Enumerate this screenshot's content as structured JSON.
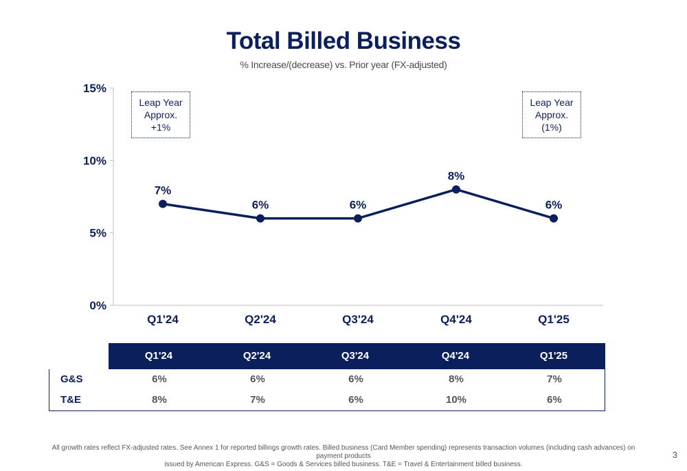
{
  "title": "Total Billed Business",
  "subtitle": "% Increase/(decrease) vs. Prior year (FX-adjusted)",
  "notes": [
    {
      "lines": [
        "Leap Year",
        "Approx.",
        "+1%"
      ]
    },
    {
      "lines": [
        "Leap Year",
        "Approx.",
        "(1%)"
      ]
    }
  ],
  "chart_data": {
    "type": "line",
    "title": "Total Billed Business",
    "subtitle": "% Increase/(decrease) vs. Prior year (FX-adjusted)",
    "categories": [
      "Q1'24",
      "Q2'24",
      "Q3'24",
      "Q4'24",
      "Q1'25"
    ],
    "series": [
      {
        "values": [
          7,
          6,
          6,
          8,
          6
        ]
      }
    ],
    "data_labels": [
      "7%",
      "6%",
      "6%",
      "8%",
      "6%"
    ],
    "ylim": [
      0,
      15
    ],
    "yticks": [
      0,
      5,
      10,
      15
    ],
    "ytick_labels": [
      "0%",
      "5%",
      "10%",
      "15%"
    ],
    "color": "#0b1f5c",
    "grid": false
  },
  "table": {
    "headers": [
      "Q1'24",
      "Q2'24",
      "Q3'24",
      "Q4'24",
      "Q1'25"
    ],
    "rows": [
      {
        "label": "G&S",
        "values": [
          "6%",
          "6%",
          "6%",
          "8%",
          "7%"
        ]
      },
      {
        "label": "T&E",
        "values": [
          "8%",
          "7%",
          "6%",
          "10%",
          "6%"
        ]
      }
    ],
    "header_bg": "#0b1f5c"
  },
  "footnote": {
    "line1": "All growth rates reflect FX-adjusted rates. See Annex 1 for reported billings growth rates. Billed business (Card Member spending) represents transaction volumes (including cash advances) on payment products",
    "line2": "issued by American Express. G&S = Goods & Services billed business. T&E = Travel & Entertainment billed business."
  },
  "page_number": "3"
}
